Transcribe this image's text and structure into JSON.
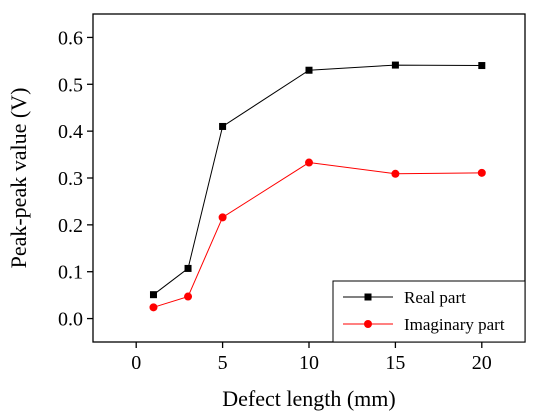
{
  "chart_data": {
    "type": "line",
    "xlabel": "Defect length (mm)",
    "ylabel": "Peak-peak value (V)",
    "xlim": [
      -2.5,
      22.5
    ],
    "ylim": [
      -0.05,
      0.65
    ],
    "xticks": [
      0,
      5,
      10,
      15,
      20
    ],
    "yticks": [
      0.0,
      0.1,
      0.2,
      0.3,
      0.4,
      0.5,
      0.6
    ],
    "xtick_labels": [
      "0",
      "5",
      "10",
      "15",
      "20"
    ],
    "ytick_labels": [
      "0.0",
      "0.1",
      "0.2",
      "0.3",
      "0.4",
      "0.5",
      "0.6"
    ],
    "grid": false,
    "legend_position": "bottom-right",
    "x": [
      1,
      3,
      5,
      10,
      15,
      20
    ],
    "series": [
      {
        "name": "Real part",
        "color": "#000000",
        "marker": "square",
        "values": [
          0.051,
          0.107,
          0.41,
          0.53,
          0.541,
          0.54
        ]
      },
      {
        "name": "Imaginary part",
        "color": "#ff0000",
        "marker": "circle",
        "values": [
          0.024,
          0.047,
          0.216,
          0.333,
          0.309,
          0.311
        ]
      }
    ]
  }
}
